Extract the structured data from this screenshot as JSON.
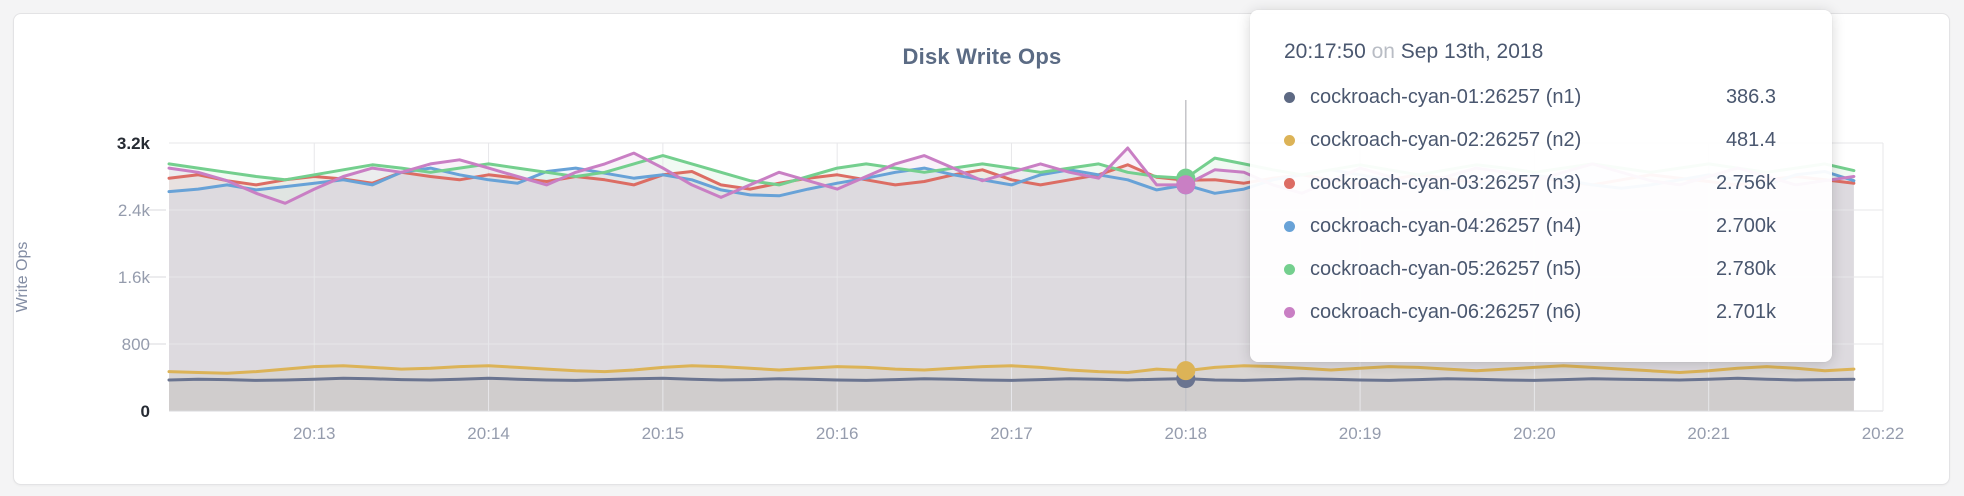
{
  "page": {
    "background": "#f4f4f5"
  },
  "card": {
    "background": "#ffffff",
    "border_color": "#e3e3e5"
  },
  "title": "Disk Write Ops",
  "colors": {
    "grid": "#e7e7ea",
    "axis_tick_muted": "#959cad",
    "axis_tick_strong": "#262b33",
    "hover_line": "#c4c4c8",
    "title": "#5b6b84",
    "tooltip_text": "#4a576f",
    "tooltip_muted": "#b9bdc5"
  },
  "y_axis": {
    "label": "Write Ops",
    "ticks": [
      {
        "value": 3200,
        "label": "3.2k",
        "emphasis": true
      },
      {
        "value": 2400,
        "label": "2.4k",
        "emphasis": false
      },
      {
        "value": 1600,
        "label": "1.6k",
        "emphasis": false
      },
      {
        "value": 800,
        "label": "800",
        "emphasis": false
      },
      {
        "value": 0,
        "label": "0",
        "emphasis": true
      }
    ]
  },
  "x_axis": {
    "ticks": [
      {
        "label": "20:13",
        "sec": 780
      },
      {
        "label": "20:14",
        "sec": 840
      },
      {
        "label": "20:15",
        "sec": 900
      },
      {
        "label": "20:16",
        "sec": 960
      },
      {
        "label": "20:17",
        "sec": 1020
      },
      {
        "label": "20:18",
        "sec": 1080
      },
      {
        "label": "20:19",
        "sec": 1140
      },
      {
        "label": "20:20",
        "sec": 1200
      },
      {
        "label": "20:21",
        "sec": 1260
      },
      {
        "label": "20:22",
        "sec": 1320
      }
    ]
  },
  "chart_data": {
    "type": "line",
    "title": "Disk Write Ops",
    "ylabel": "Write Ops",
    "ylim": [
      0,
      3200
    ],
    "grid": true,
    "x_start": "20:12:10",
    "x_end": "20:21:50",
    "interval_seconds": 10,
    "legend_position": "tooltip",
    "series": [
      {
        "name": "cockroach-cyan-01:26257 (n1)",
        "color": "#6a7490",
        "values": [
          370,
          380,
          375,
          365,
          370,
          380,
          390,
          385,
          375,
          370,
          380,
          390,
          380,
          370,
          365,
          375,
          385,
          390,
          380,
          370,
          375,
          385,
          380,
          370,
          365,
          375,
          385,
          380,
          370,
          365,
          375,
          385,
          380,
          370,
          380,
          386.3,
          370,
          365,
          375,
          385,
          380,
          370,
          365,
          375,
          385,
          380,
          370,
          365,
          375,
          385,
          380,
          375,
          370,
          380,
          390,
          380,
          370,
          375,
          380
        ]
      },
      {
        "name": "cockroach-cyan-02:26257 (n2)",
        "color": "#dcb357",
        "values": [
          470,
          460,
          450,
          470,
          500,
          530,
          540,
          520,
          500,
          510,
          530,
          540,
          520,
          500,
          480,
          470,
          490,
          520,
          540,
          530,
          510,
          490,
          510,
          530,
          520,
          500,
          490,
          510,
          530,
          540,
          520,
          490,
          470,
          460,
          500,
          481.4,
          520,
          540,
          530,
          510,
          490,
          510,
          530,
          520,
          500,
          480,
          500,
          520,
          540,
          520,
          500,
          480,
          460,
          480,
          510,
          530,
          510,
          480,
          500
        ]
      },
      {
        "name": "cockroach-cyan-03:26257 (n3)",
        "color": "#dc6d64",
        "values": [
          2780,
          2820,
          2750,
          2700,
          2760,
          2800,
          2770,
          2720,
          2850,
          2800,
          2760,
          2820,
          2780,
          2740,
          2800,
          2760,
          2700,
          2820,
          2860,
          2700,
          2650,
          2720,
          2780,
          2820,
          2760,
          2700,
          2740,
          2820,
          2880,
          2760,
          2700,
          2760,
          2820,
          2940,
          2790,
          2756,
          2760,
          2720,
          2780,
          2820,
          2760,
          2700,
          2760,
          2820,
          2780,
          2720,
          2760,
          2800,
          2740,
          2700,
          2760,
          2820,
          2780,
          2740,
          2700,
          2760,
          2800,
          2760,
          2720
        ]
      },
      {
        "name": "cockroach-cyan-04:26257 (n4)",
        "color": "#68a2d7",
        "values": [
          2620,
          2650,
          2700,
          2640,
          2680,
          2720,
          2760,
          2700,
          2850,
          2900,
          2820,
          2760,
          2720,
          2860,
          2900,
          2840,
          2780,
          2820,
          2760,
          2640,
          2580,
          2570,
          2650,
          2720,
          2780,
          2850,
          2900,
          2820,
          2760,
          2700,
          2820,
          2880,
          2820,
          2760,
          2640,
          2700,
          2600,
          2650,
          2760,
          2820,
          2880,
          2820,
          2760,
          2700,
          2650,
          2700,
          2760,
          2820,
          2760,
          2700,
          2660,
          2700,
          2760,
          2820,
          2760,
          2700,
          2820,
          2860,
          2750
        ]
      },
      {
        "name": "cockroach-cyan-05:26257 (n5)",
        "color": "#74cf8e",
        "values": [
          2950,
          2900,
          2850,
          2800,
          2760,
          2820,
          2880,
          2940,
          2900,
          2850,
          2900,
          2950,
          2900,
          2850,
          2800,
          2850,
          2950,
          3050,
          2950,
          2850,
          2750,
          2700,
          2800,
          2900,
          2950,
          2900,
          2850,
          2900,
          2950,
          2900,
          2850,
          2900,
          2950,
          2850,
          2800,
          2780,
          3020,
          2950,
          2880,
          2820,
          2880,
          2940,
          2880,
          2820,
          2880,
          2940,
          2900,
          2850,
          2900,
          2950,
          2900,
          2850,
          2900,
          2950,
          2900,
          2850,
          2900,
          2950,
          2870
        ]
      },
      {
        "name": "cockroach-cyan-06:26257 (n6)",
        "color": "#c97fc4",
        "values": [
          2900,
          2850,
          2750,
          2600,
          2480,
          2650,
          2800,
          2900,
          2850,
          2950,
          3000,
          2900,
          2800,
          2700,
          2850,
          2950,
          3080,
          2900,
          2700,
          2550,
          2700,
          2850,
          2750,
          2650,
          2800,
          2950,
          3050,
          2900,
          2750,
          2850,
          2950,
          2850,
          2780,
          3140,
          2700,
          2701,
          2880,
          2850,
          2700,
          2600,
          2750,
          2900,
          2800,
          2700,
          2800,
          2900,
          2850,
          2750,
          2850,
          2950,
          2850,
          2750,
          2700,
          2800,
          2900,
          2800,
          2700,
          2750,
          2800
        ]
      }
    ]
  },
  "tooltip": {
    "time": "20:17:50",
    "connector": "on",
    "date": "Sep 13th, 2018",
    "hover_index": 35,
    "rows": [
      {
        "name": "cockroach-cyan-01:26257 (n1)",
        "value": "386.3",
        "color": "#5d6983"
      },
      {
        "name": "cockroach-cyan-02:26257 (n2)",
        "value": "481.4",
        "color": "#dcb357"
      },
      {
        "name": "cockroach-cyan-03:26257 (n3)",
        "value": "2.756k",
        "color": "#dc6d64"
      },
      {
        "name": "cockroach-cyan-04:26257 (n4)",
        "value": "2.700k",
        "color": "#68a2d7"
      },
      {
        "name": "cockroach-cyan-05:26257 (n5)",
        "value": "2.780k",
        "color": "#74cf8e"
      },
      {
        "name": "cockroach-cyan-06:26257 (n6)",
        "value": "2.701k",
        "color": "#c97fc4"
      }
    ]
  }
}
